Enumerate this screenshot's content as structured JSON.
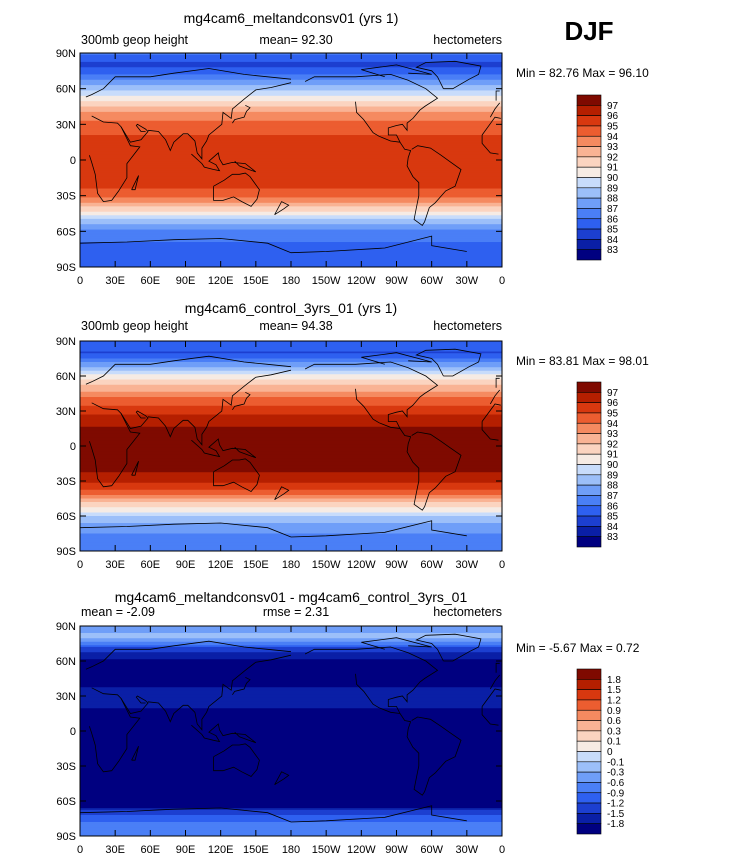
{
  "season": "DJF",
  "chart_data": [
    {
      "type": "heatmap",
      "title": "mg4cam6_meltandconsv01 (yrs 1)",
      "left_label": "300mb geop height",
      "center_label": "mean=   92.30",
      "right_label": "hectometers",
      "stats_label": "Min =   82.76  Max =   96.10",
      "min": 82.76,
      "max": 96.1,
      "mean": 92.3,
      "x_ticks": [
        "0",
        "30E",
        "60E",
        "90E",
        "120E",
        "150E",
        "180",
        "150W",
        "120W",
        "90W",
        "60W",
        "30W",
        "0"
      ],
      "y_ticks": [
        "90N",
        "60N",
        "30N",
        "0",
        "30S",
        "60S",
        "90S"
      ],
      "lat_profile": [
        [
          90,
          86.3
        ],
        [
          80,
          84.6
        ],
        [
          70,
          86.2
        ],
        [
          60,
          88.8
        ],
        [
          50,
          90.9
        ],
        [
          40,
          93.0
        ],
        [
          30,
          94.3
        ],
        [
          20,
          95.1
        ],
        [
          0,
          95.3
        ],
        [
          -20,
          95.3
        ],
        [
          -30,
          94.5
        ],
        [
          -40,
          91.9
        ],
        [
          -50,
          88.8
        ],
        [
          -60,
          86.7
        ],
        [
          -70,
          85.9
        ],
        [
          -80,
          85.7
        ],
        [
          -90,
          85.5
        ]
      ],
      "colorbar_labels": [
        "97",
        "96",
        "95",
        "94",
        "93",
        "92",
        "91",
        "90",
        "89",
        "88",
        "87",
        "86",
        "85",
        "84",
        "83"
      ],
      "levels": [
        83,
        84,
        85,
        86,
        87,
        88,
        89,
        90,
        91,
        92,
        93,
        94,
        95,
        96,
        97
      ],
      "colors": [
        "#000080",
        "#0a1fa6",
        "#1c3fd0",
        "#2e60f0",
        "#4a7ff6",
        "#6f9ef8",
        "#9cbff9",
        "#c8dcfb",
        "#f6ebe4",
        "#fbd4c0",
        "#f9b394",
        "#f58a60",
        "#ec5d30",
        "#d8380f",
        "#b51f00",
        "#7f0a00"
      ]
    },
    {
      "type": "heatmap",
      "title": "mg4cam6_control_3yrs_01 (yrs 1)",
      "left_label": "300mb geop height",
      "center_label": "mean=   94.38",
      "right_label": "hectometers",
      "stats_label": "Min =   83.81  Max =   98.01",
      "min": 83.81,
      "max": 98.01,
      "mean": 94.38,
      "x_ticks": [
        "0",
        "30E",
        "60E",
        "90E",
        "120E",
        "150E",
        "180",
        "150W",
        "120W",
        "90W",
        "60W",
        "30W",
        "0"
      ],
      "y_ticks": [
        "90N",
        "60N",
        "30N",
        "0",
        "30S",
        "60S",
        "90S"
      ],
      "lat_profile": [
        [
          90,
          86.0
        ],
        [
          80,
          84.9
        ],
        [
          70,
          87.4
        ],
        [
          60,
          90.3
        ],
        [
          50,
          92.5
        ],
        [
          40,
          94.3
        ],
        [
          30,
          95.6
        ],
        [
          20,
          96.9
        ],
        [
          0,
          97.4
        ],
        [
          -20,
          97.2
        ],
        [
          -30,
          96.3
        ],
        [
          -40,
          94.5
        ],
        [
          -50,
          91.5
        ],
        [
          -60,
          89.1
        ],
        [
          -70,
          87.3
        ],
        [
          -80,
          86.6
        ],
        [
          -90,
          86.3
        ]
      ],
      "colorbar_labels": [
        "97",
        "96",
        "95",
        "94",
        "93",
        "92",
        "91",
        "90",
        "89",
        "88",
        "87",
        "86",
        "85",
        "84",
        "83"
      ],
      "levels": [
        83,
        84,
        85,
        86,
        87,
        88,
        89,
        90,
        91,
        92,
        93,
        94,
        95,
        96,
        97
      ],
      "colors": [
        "#000080",
        "#0a1fa6",
        "#1c3fd0",
        "#2e60f0",
        "#4a7ff6",
        "#6f9ef8",
        "#9cbff9",
        "#c8dcfb",
        "#f6ebe4",
        "#fbd4c0",
        "#f9b394",
        "#f58a60",
        "#ec5d30",
        "#d8380f",
        "#b51f00",
        "#7f0a00"
      ]
    },
    {
      "type": "heatmap",
      "title": "mg4cam6_meltandconsv01 - mg4cam6_control_3yrs_01",
      "left_label": "mean =   -2.09",
      "center_label": "rmse =    2.31",
      "right_label": "hectometers",
      "stats_label": "Min =   -5.67  Max =    0.72",
      "min": -5.67,
      "max": 0.72,
      "mean": -2.09,
      "rmse": 2.31,
      "x_ticks": [
        "0",
        "30E",
        "60E",
        "90E",
        "120E",
        "150E",
        "180",
        "150W",
        "120W",
        "90W",
        "60W",
        "30W",
        "0"
      ],
      "y_ticks": [
        "90N",
        "60N",
        "30N",
        "0",
        "30S",
        "60S",
        "90S"
      ],
      "lat_profile": [
        [
          90,
          -0.5
        ],
        [
          80,
          -0.2
        ],
        [
          70,
          -1.4
        ],
        [
          60,
          -1.9
        ],
        [
          50,
          -2.1
        ],
        [
          30,
          -1.6
        ],
        [
          20,
          -1.8
        ],
        [
          0,
          -2.2
        ],
        [
          -20,
          -2.3
        ],
        [
          -30,
          -1.9
        ],
        [
          -40,
          -2.6
        ],
        [
          -50,
          -2.7
        ],
        [
          -60,
          -2.4
        ],
        [
          -70,
          -1.3
        ],
        [
          -80,
          -0.8
        ],
        [
          -90,
          -0.9
        ]
      ],
      "colorbar_labels": [
        "1.8",
        "1.5",
        "1.2",
        "0.9",
        "0.6",
        "0.3",
        "0.1",
        "0",
        "-0.1",
        "-0.3",
        "-0.6",
        "-0.9",
        "-1.2",
        "-1.5",
        "-1.8"
      ],
      "levels": [
        -1.8,
        -1.5,
        -1.2,
        -0.9,
        -0.6,
        -0.3,
        -0.1,
        0,
        0.1,
        0.3,
        0.6,
        0.9,
        1.2,
        1.5,
        1.8
      ],
      "colors": [
        "#000080",
        "#0a1fa6",
        "#1c3fd0",
        "#2e60f0",
        "#4a7ff6",
        "#6f9ef8",
        "#9cbff9",
        "#c8dcfb",
        "#f6ebe4",
        "#fbd4c0",
        "#f9b394",
        "#f58a60",
        "#ec5d30",
        "#d8380f",
        "#b51f00",
        "#7f0a00"
      ]
    }
  ]
}
